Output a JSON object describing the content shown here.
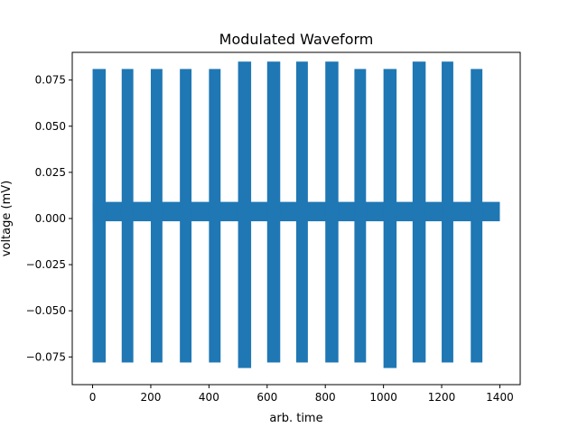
{
  "chart_data": {
    "type": "line",
    "title": "Modulated Waveform",
    "xlabel": "arb. time",
    "ylabel": "voltage (mV)",
    "xlim": [
      -70,
      1470
    ],
    "ylim": [
      -0.09,
      0.09
    ],
    "x_ticks": [
      0,
      200,
      400,
      600,
      800,
      1000,
      1200,
      1400
    ],
    "x_tick_labels": [
      "0",
      "200",
      "400",
      "600",
      "800",
      "1000",
      "1200",
      "1400"
    ],
    "y_ticks": [
      -0.075,
      -0.05,
      -0.025,
      0.0,
      0.025,
      0.05,
      0.075
    ],
    "y_tick_labels": [
      "−0.075",
      "−0.050",
      "−0.025",
      "0.000",
      "0.025",
      "0.050",
      "0.075"
    ],
    "grid": false,
    "legend": "none",
    "color": "#1f77b4",
    "series": [
      {
        "baseline_band": {
          "x_range": [
            0,
            1400
          ],
          "y_range": [
            -0.0015,
            0.009
          ]
        },
        "bursts": [
          {
            "x_start": 0,
            "x_end": 45,
            "y_min": -0.078,
            "y_max": 0.081
          },
          {
            "x_start": 100,
            "x_end": 140,
            "y_min": -0.078,
            "y_max": 0.081
          },
          {
            "x_start": 200,
            "x_end": 240,
            "y_min": -0.078,
            "y_max": 0.081
          },
          {
            "x_start": 300,
            "x_end": 340,
            "y_min": -0.078,
            "y_max": 0.081
          },
          {
            "x_start": 400,
            "x_end": 440,
            "y_min": -0.078,
            "y_max": 0.081
          },
          {
            "x_start": 500,
            "x_end": 545,
            "y_min": -0.081,
            "y_max": 0.085
          },
          {
            "x_start": 600,
            "x_end": 645,
            "y_min": -0.078,
            "y_max": 0.085
          },
          {
            "x_start": 700,
            "x_end": 740,
            "y_min": -0.078,
            "y_max": 0.085
          },
          {
            "x_start": 800,
            "x_end": 845,
            "y_min": -0.078,
            "y_max": 0.085
          },
          {
            "x_start": 900,
            "x_end": 940,
            "y_min": -0.078,
            "y_max": 0.081
          },
          {
            "x_start": 1000,
            "x_end": 1045,
            "y_min": -0.081,
            "y_max": 0.081
          },
          {
            "x_start": 1100,
            "x_end": 1145,
            "y_min": -0.078,
            "y_max": 0.085
          },
          {
            "x_start": 1200,
            "x_end": 1240,
            "y_min": -0.078,
            "y_max": 0.085
          },
          {
            "x_start": 1300,
            "x_end": 1340,
            "y_min": -0.078,
            "y_max": 0.081
          }
        ]
      }
    ]
  }
}
